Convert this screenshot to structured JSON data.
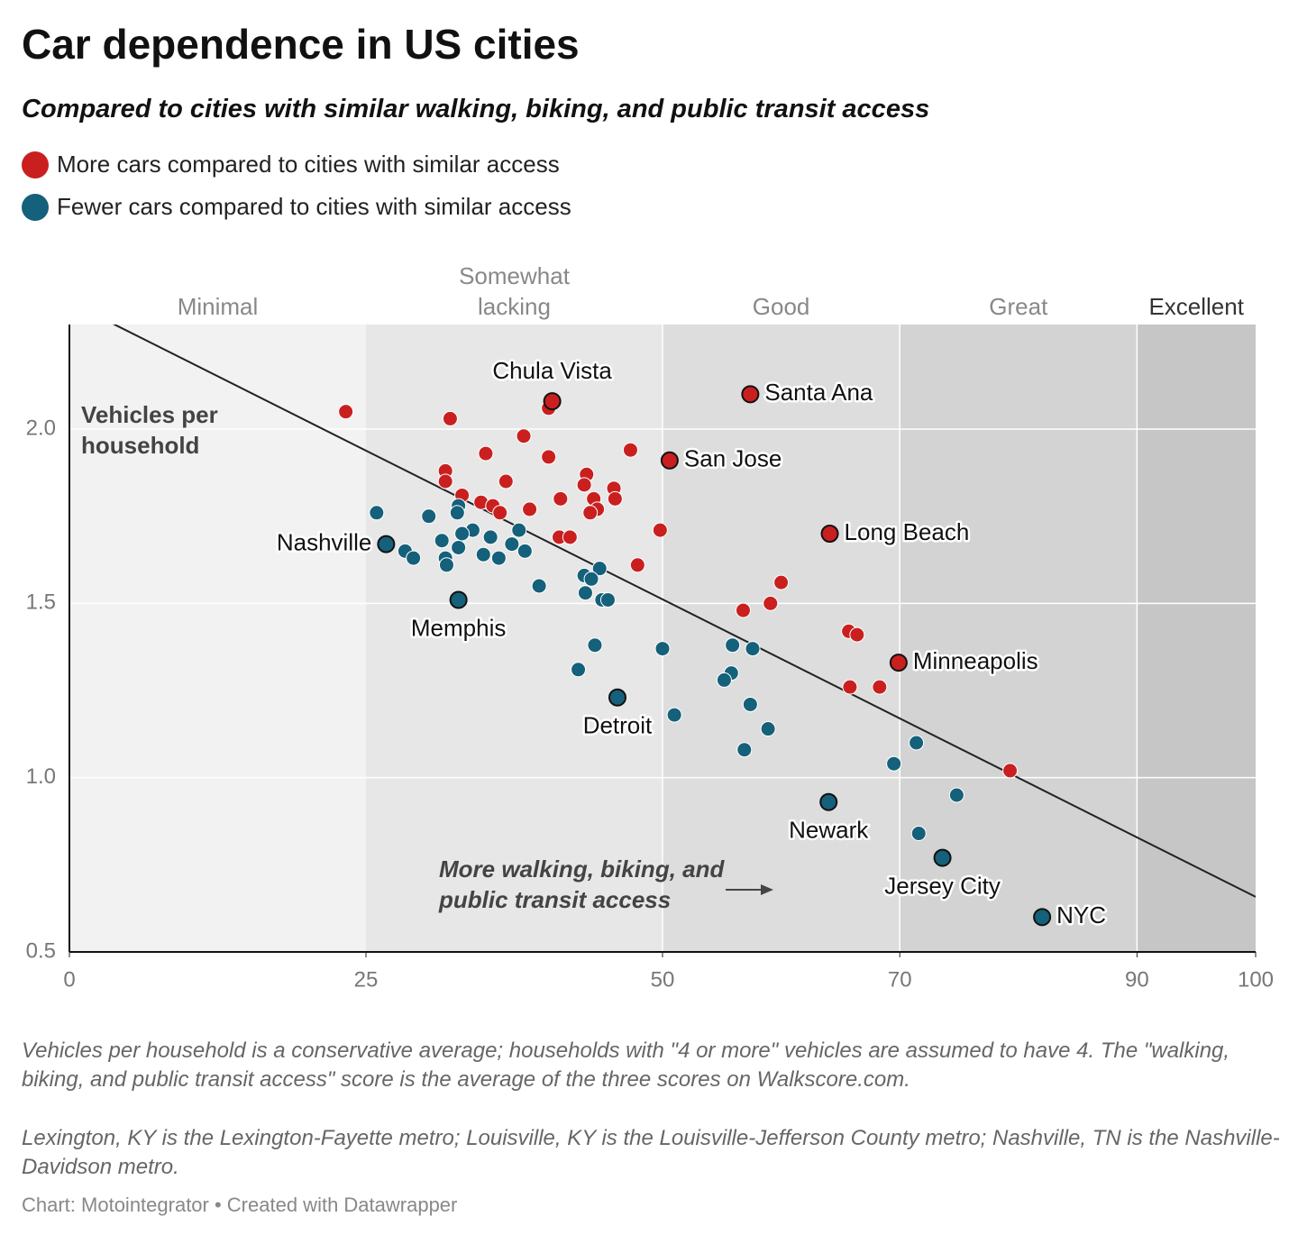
{
  "chart_data": {
    "type": "scatter",
    "title": "Car dependence in US cities",
    "subtitle": "Compared to cities with similar walking, biking, and public transit access",
    "ylabel": "Vehicles per household",
    "annotation": "More walking, biking, and public transit access",
    "notes": [
      "Vehicles per household is a conservative average; households with \"4 or more\" vehicles are assumed to have 4. The \"walking, biking, and public transit access\" score is the average of the three scores on Walkscore.com.",
      "Lexington, KY is the Lexington-Fayette metro; Louisville, KY is the Louisville-Jefferson County metro; Nashville, TN is the Nashville-Davidson metro."
    ],
    "source": "Chart: Motointegrator • Created with Datawrapper",
    "xlim": [
      0,
      100
    ],
    "xticks": [
      0,
      25,
      50,
      70,
      90,
      100
    ],
    "ylim": [
      0.5,
      2.3
    ],
    "yticks": [
      0.5,
      {
        "value": 1,
        "label": "1.0"
      },
      1.5,
      {
        "value": 2,
        "label": "2.0"
      }
    ],
    "grid": true,
    "bands": [
      {
        "label": "Minimal",
        "from": 0,
        "to": 25,
        "color": "#f2f2f2"
      },
      {
        "label": "Somewhat lacking",
        "from": 25,
        "to": 50,
        "color": "#e7e7e7"
      },
      {
        "label": "Good",
        "from": 50,
        "to": 70,
        "color": "#dddddd"
      },
      {
        "label": "Great",
        "from": 70,
        "to": 90,
        "color": "#d3d3d3"
      },
      {
        "label": "Excellent",
        "from": 90,
        "to": 100,
        "color": "#c6c6c6"
      }
    ],
    "trendline": {
      "x": [
        0,
        100
      ],
      "y": [
        2.365,
        0.658
      ],
      "color": "#222222"
    },
    "series": [
      {
        "name": "More cars compared to cities with similar access",
        "color": "#c9201f",
        "labels": [
          "Chula Vista",
          "Santa Ana",
          "San Jose",
          "Long Beach",
          "Minneapolis",
          null,
          null,
          null,
          null,
          null,
          null,
          null,
          null,
          null,
          null,
          null,
          null,
          null,
          null,
          null,
          null,
          null,
          null,
          null,
          null,
          null,
          null,
          null,
          null,
          null,
          null,
          null,
          null,
          null,
          null,
          null,
          null,
          null,
          null,
          null
        ],
        "x": [
          40.7,
          57.4,
          50.6,
          64.1,
          69.9,
          23.3,
          32.1,
          40.4,
          38.3,
          35.1,
          40.4,
          47.3,
          31.7,
          31.7,
          43.6,
          36.8,
          43.4,
          33.1,
          34.7,
          35.7,
          36.3,
          44.2,
          41.4,
          45.9,
          46.0,
          44.5,
          43.9,
          38.8,
          49.8,
          41.3,
          42.2,
          47.9,
          56.8,
          59.1,
          60.0,
          65.7,
          66.4,
          65.8,
          68.3,
          79.3
        ],
        "values": [
          2.08,
          2.1,
          1.91,
          1.7,
          1.33,
          2.05,
          2.03,
          2.06,
          1.98,
          1.93,
          1.92,
          1.94,
          1.88,
          1.85,
          1.87,
          1.85,
          1.84,
          1.81,
          1.79,
          1.78,
          1.76,
          1.8,
          1.8,
          1.83,
          1.8,
          1.77,
          1.76,
          1.77,
          1.71,
          1.69,
          1.69,
          1.61,
          1.48,
          1.5,
          1.56,
          1.42,
          1.41,
          1.26,
          1.26,
          1.02
        ]
      },
      {
        "name": "Fewer cars compared to cities with similar access",
        "color": "#15607a",
        "labels": [
          "Nashville",
          "Memphis",
          "Detroit",
          "Newark",
          "Jersey City",
          "NYC",
          null,
          null,
          null,
          null,
          null,
          null,
          null,
          null,
          null,
          null,
          null,
          null,
          null,
          null,
          null,
          null,
          null,
          null,
          null,
          null,
          null,
          null,
          null,
          null,
          null,
          null,
          null,
          null,
          null,
          null,
          null,
          null,
          null,
          null,
          null,
          null,
          null,
          null,
          null,
          null
        ],
        "x": [
          26.7,
          32.8,
          46.2,
          64.0,
          73.6,
          82.0,
          25.9,
          30.3,
          32.8,
          32.7,
          34.0,
          33.1,
          31.4,
          35.5,
          37.9,
          28.3,
          29.0,
          31.7,
          31.8,
          32.8,
          34.9,
          36.2,
          37.3,
          38.4,
          39.6,
          43.4,
          44.7,
          44.0,
          43.5,
          44.9,
          45.4,
          44.3,
          42.9,
          50.0,
          51.0,
          55.9,
          57.6,
          55.8,
          55.2,
          57.4,
          58.9,
          56.9,
          71.4,
          69.5,
          74.8,
          71.6
        ],
        "values": [
          1.67,
          1.51,
          1.23,
          0.93,
          0.77,
          0.6,
          1.76,
          1.75,
          1.78,
          1.76,
          1.71,
          1.7,
          1.68,
          1.69,
          1.71,
          1.65,
          1.63,
          1.63,
          1.61,
          1.66,
          1.64,
          1.63,
          1.67,
          1.65,
          1.55,
          1.58,
          1.6,
          1.57,
          1.53,
          1.51,
          1.51,
          1.38,
          1.31,
          1.37,
          1.18,
          1.38,
          1.37,
          1.3,
          1.28,
          1.21,
          1.14,
          1.08,
          1.1,
          1.04,
          0.95,
          0.84
        ]
      }
    ]
  }
}
